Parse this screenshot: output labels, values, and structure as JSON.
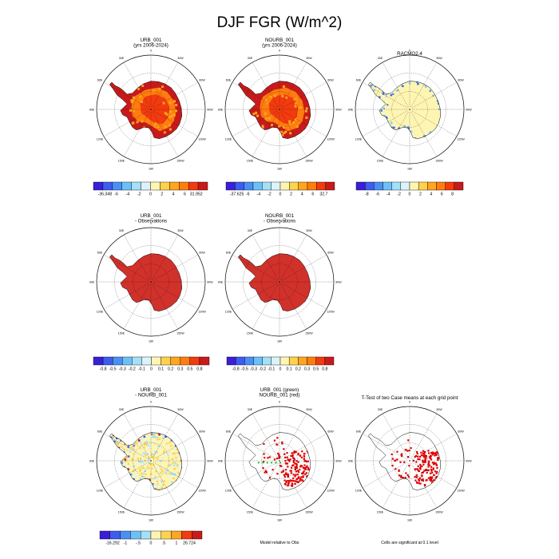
{
  "figure": {
    "title": "DJF FGR (W/m^2)",
    "lon_labels": [
      "0",
      "30E",
      "60E",
      "90E",
      "120E",
      "150E",
      "180",
      "150W",
      "120W",
      "90W",
      "60W",
      "30W"
    ],
    "palette_12": [
      "#3a1fd8",
      "#3d5cf0",
      "#4a8ff5",
      "#6cc0f8",
      "#a4e0f8",
      "#dcf3fb",
      "#fff5b3",
      "#ffd24d",
      "#ffa51f",
      "#ff7d0f",
      "#f23b0f",
      "#c81a1a"
    ],
    "palette_10": [
      "#3a1fd8",
      "#3d5cf0",
      "#4a8ff5",
      "#6cc0f8",
      "#a4e0f8",
      "#fff5b3",
      "#ffd24d",
      "#ffa51f",
      "#f23b0f",
      "#c81a1a"
    ],
    "land_color": "#d1312b",
    "ocean_color": "#ffffff"
  },
  "panels": [
    {
      "id": "p1",
      "title_lines": [
        "URB_001",
        "(yrs 2006-2024)"
      ],
      "fill": "warm",
      "colorbar": "cb1"
    },
    {
      "id": "p2",
      "title_lines": [
        "NOURB_001",
        "(yrs 2006-2024)"
      ],
      "fill": "warm",
      "colorbar": "cb2"
    },
    {
      "id": "p3",
      "title_lines": [
        "RACMO2.4"
      ],
      "fill": "pale",
      "colorbar": "cb3"
    },
    {
      "id": "p4",
      "title_lines": [
        "URB_001",
        "- Observations"
      ],
      "fill": "red",
      "colorbar": "cb4"
    },
    {
      "id": "p5",
      "title_lines": [
        "NOURB_001",
        "- Observations"
      ],
      "fill": "red",
      "colorbar": "cb5"
    },
    {
      "id": "p6",
      "title_lines": [
        "URB_001",
        "- NOURB_001"
      ],
      "fill": "diff",
      "colorbar": "cb6"
    },
    {
      "id": "p7",
      "title_lines": [
        "URB_001 (green)",
        "NOURB_001 (red)"
      ],
      "fill": "sigpts",
      "note": "Model relative to Obs"
    },
    {
      "id": "p8",
      "title_lines": [
        "T-Test of two Case means at each grid point"
      ],
      "fill": "sigpts2",
      "note": "Cells are significant at 0.1 level"
    }
  ],
  "chart_data": [
    {
      "type": "heatmap",
      "title": "URB_001 (yrs 2006-2024)",
      "projection": "south polar stereographic",
      "colorbar": {
        "labels": [
          "-36.348",
          "-6",
          "-4",
          "-2",
          "0",
          "2",
          "4",
          "6",
          "31.952"
        ],
        "range": [
          -36.348,
          31.952
        ]
      }
    },
    {
      "type": "heatmap",
      "title": "NOURB_001 (yrs 2006-2024)",
      "projection": "south polar stereographic",
      "colorbar": {
        "labels": [
          "-37.625",
          "-6",
          "-4",
          "-2",
          "0",
          "2",
          "4",
          "6",
          "32.7"
        ],
        "range": [
          -37.625,
          32.7
        ]
      }
    },
    {
      "type": "heatmap",
      "title": "RACMO2.4",
      "projection": "south polar stereographic",
      "colorbar": {
        "labels": [
          "-8",
          "-6",
          "-4",
          "-2",
          "0",
          "2",
          "4",
          "6",
          "8"
        ],
        "range": [
          -8,
          8
        ]
      }
    },
    {
      "type": "heatmap",
      "title": "URB_001 - Observations",
      "projection": "south polar stereographic",
      "colorbar": {
        "labels": [
          "-0.8",
          "-0.5",
          "-0.3",
          "-0.2",
          "-0.1",
          "0",
          "0.1",
          "0.2",
          "0.3",
          "0.5",
          "0.8"
        ]
      }
    },
    {
      "type": "heatmap",
      "title": "NOURB_001 - Observations",
      "projection": "south polar stereographic",
      "colorbar": {
        "labels": [
          "-0.8",
          "-0.5",
          "-0.3",
          "-0.2",
          "-0.1",
          "0",
          "0.1",
          "0.2",
          "0.3",
          "0.5",
          "0.8"
        ]
      }
    },
    {
      "type": "heatmap",
      "title": "URB_001 - NOURB_001",
      "projection": "south polar stereographic",
      "colorbar": {
        "labels": [
          "-16.292",
          "-1",
          "-.5",
          "0",
          ".5",
          "1",
          "26.724"
        ],
        "range": [
          -16.292,
          26.724
        ]
      }
    },
    {
      "type": "scatter",
      "title": "URB_001 (green) NOURB_001 (red)",
      "note": "Model relative to Obs"
    },
    {
      "type": "scatter",
      "title": "T-Test of two Case means at each grid point",
      "note": "Cells are significant at 0.1 level"
    }
  ]
}
